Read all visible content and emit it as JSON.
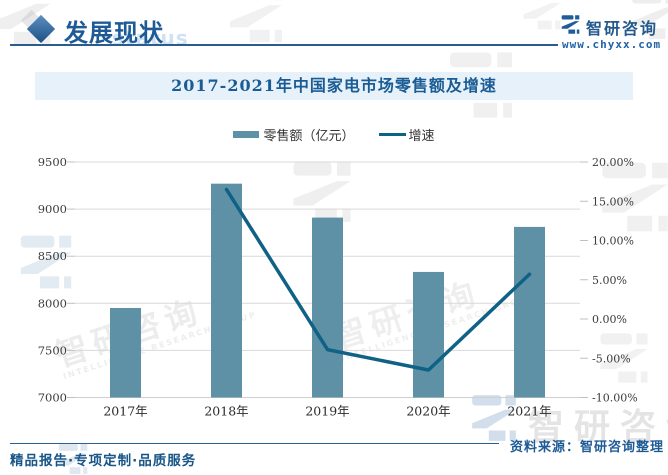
{
  "header": {
    "section_title": "发展现状",
    "section_subtitle_en": "status",
    "brand_name": "智研咨询",
    "brand_url": "www.chyxx.com"
  },
  "chart_data": {
    "type": "bar",
    "title": "2017-2021年中国家电市场零售额及增速",
    "categories": [
      "2017年",
      "2018年",
      "2019年",
      "2020年",
      "2021年"
    ],
    "series": [
      {
        "name": "零售额（亿元）",
        "type": "bar",
        "axis": "left",
        "color": "#5f91a6",
        "values": [
          7950,
          9270,
          8910,
          8333,
          8811
        ]
      },
      {
        "name": "增速",
        "type": "line",
        "axis": "right",
        "color": "#0f6285",
        "values": [
          null,
          16.5,
          -3.9,
          -6.5,
          5.7
        ]
      }
    ],
    "left_axis": {
      "min": 7000,
      "max": 9500,
      "step": 500,
      "tick_labels": [
        "9500",
        "9000",
        "8500",
        "8000",
        "7500",
        "7000"
      ]
    },
    "right_axis": {
      "min": -10,
      "max": 20,
      "step": 5,
      "tick_labels": [
        "20.00%",
        "15.00%",
        "10.00%",
        "5.00%",
        "0.00%",
        "-5.00%",
        "-10.00%"
      ]
    },
    "grid": true,
    "legend_position": "top"
  },
  "footer": {
    "source": "资料来源：智研咨询整理",
    "tagline": "精品报告·专项定制·品质服务"
  },
  "watermark": {
    "cn": "智研咨询",
    "en": "INTELLIGENCE RESEARCH GROUP"
  },
  "colors": {
    "accent": "#1f5c99",
    "bar": "#5f91a6",
    "line": "#0f6285",
    "banner_bg": "#e7f1fa",
    "gridline": "#d9d9d9"
  }
}
